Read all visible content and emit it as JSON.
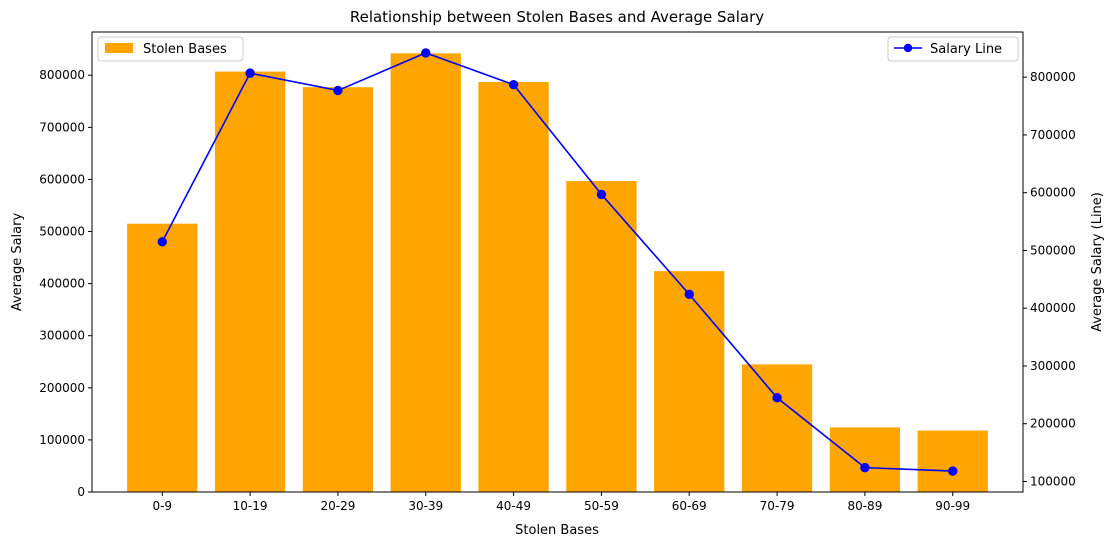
{
  "chart_data": {
    "type": "bar",
    "title": "Relationship between Stolen Bases and Average Salary",
    "xlabel": "Stolen Bases",
    "ylabel": "Average Salary",
    "ylabel_right": "Average Salary (Line)",
    "categories": [
      "0-9",
      "10-19",
      "20-29",
      "30-39",
      "40-49",
      "50-59",
      "60-69",
      "70-79",
      "80-89",
      "90-99"
    ],
    "series": [
      {
        "name": "Stolen Bases",
        "type": "bar",
        "axis": "left",
        "color": "#ffa500",
        "values": [
          515000,
          807000,
          777000,
          842000,
          787000,
          597000,
          424000,
          245000,
          124000,
          118000
        ]
      },
      {
        "name": "Salary Line",
        "type": "line",
        "axis": "right",
        "color": "#0000ff",
        "marker": "circle",
        "values": [
          515000,
          807000,
          777000,
          842000,
          787000,
          597000,
          424000,
          245000,
          124000,
          118000
        ]
      }
    ],
    "ylim_left": [
      0,
      883000
    ],
    "ylim_right": [
      81800,
      878200
    ],
    "yticks_left": [
      0,
      100000,
      200000,
      300000,
      400000,
      500000,
      600000,
      700000,
      800000
    ],
    "yticks_right": [
      100000,
      200000,
      300000,
      400000,
      500000,
      600000,
      700000,
      800000
    ],
    "legend_left": {
      "placement": "upper left",
      "label": "Stolen Bases"
    },
    "legend_right": {
      "placement": "upper right",
      "label": "Salary Line"
    },
    "grid": false
  }
}
